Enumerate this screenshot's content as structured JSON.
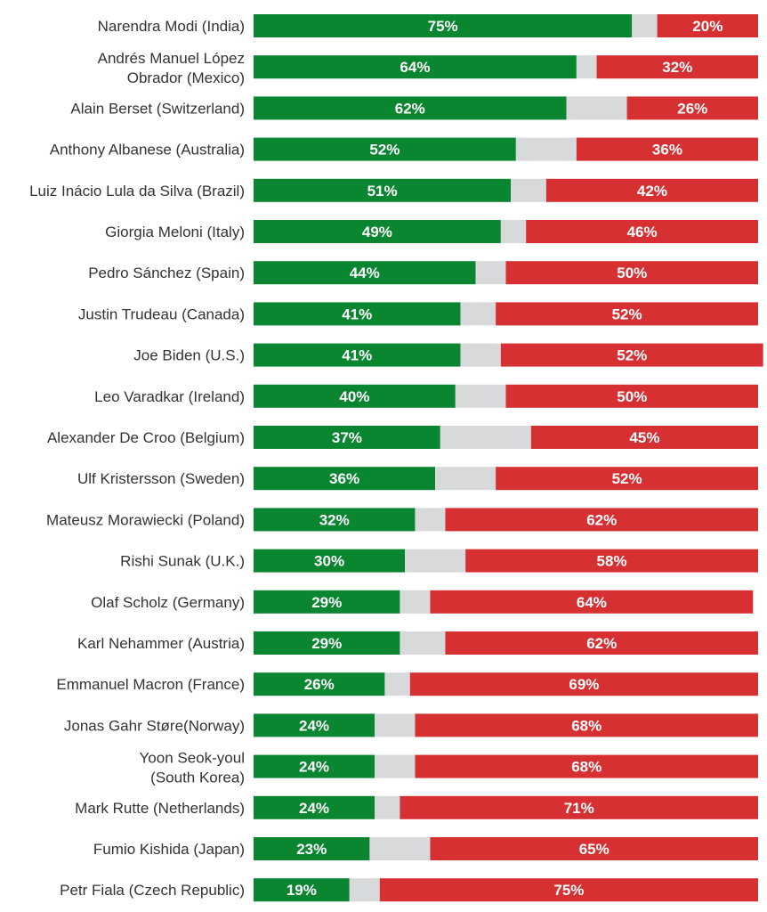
{
  "colors": {
    "approve": "#0a8530",
    "neutral": "#d8d9da",
    "disapprove": "#d63033",
    "text": "#333333"
  },
  "chart_data": {
    "type": "bar",
    "orientation": "horizontal",
    "stacked": true,
    "grid": false,
    "legend": "none",
    "xlim": [
      0,
      100
    ],
    "categories": [
      [
        "Narendra Modi (India)"
      ],
      [
        "Andrés Manuel López",
        "Obrador (Mexico)"
      ],
      [
        "Alain Berset (Switzerland)"
      ],
      [
        "Anthony Albanese (Australia)"
      ],
      [
        "Luiz Inácio Lula da Silva (Brazil)"
      ],
      [
        "Giorgia Meloni (Italy)"
      ],
      [
        "Pedro Sánchez (Spain)"
      ],
      [
        "Justin Trudeau (Canada)"
      ],
      [
        "Joe Biden (U.S.)"
      ],
      [
        "Leo Varadkar (Ireland)"
      ],
      [
        "Alexander De Croo (Belgium)"
      ],
      [
        "Ulf Kristersson (Sweden)"
      ],
      [
        "Mateusz Morawiecki (Poland)"
      ],
      [
        "Rishi Sunak (U.K.)"
      ],
      [
        "Olaf Scholz (Germany)"
      ],
      [
        "Karl Nehammer (Austria)"
      ],
      [
        "Emmanuel Macron (France)"
      ],
      [
        "Jonas Gahr Støre(Norway)"
      ],
      [
        "Yoon Seok-youl",
        "(South Korea)"
      ],
      [
        "Mark Rutte (Netherlands)"
      ],
      [
        "Fumio Kishida (Japan)"
      ],
      [
        "Petr Fiala (Czech Republic)"
      ]
    ],
    "series": [
      {
        "key": "approve",
        "values": [
          75,
          64,
          62,
          52,
          51,
          49,
          44,
          41,
          41,
          40,
          37,
          36,
          32,
          30,
          29,
          29,
          26,
          24,
          24,
          24,
          23,
          19
        ]
      },
      {
        "key": "neutral",
        "values": [
          5,
          4,
          12,
          12,
          7,
          5,
          6,
          7,
          8,
          10,
          18,
          12,
          6,
          12,
          6,
          9,
          5,
          8,
          8,
          5,
          12,
          6
        ]
      },
      {
        "key": "disapprove",
        "values": [
          20,
          32,
          26,
          36,
          42,
          46,
          50,
          52,
          52,
          50,
          45,
          52,
          62,
          58,
          64,
          62,
          69,
          68,
          68,
          71,
          65,
          75
        ]
      }
    ],
    "value_labels": [
      [
        "75%",
        "20%"
      ],
      [
        "64%",
        "32%"
      ],
      [
        "62%",
        "26%"
      ],
      [
        "52%",
        "36%"
      ],
      [
        "51%",
        "42%"
      ],
      [
        "49%",
        "46%"
      ],
      [
        "44%",
        "50%"
      ],
      [
        "41%",
        "52%"
      ],
      [
        "41%",
        "52%"
      ],
      [
        "40%",
        "50%"
      ],
      [
        "37%",
        "45%"
      ],
      [
        "36%",
        "52%"
      ],
      [
        "32%",
        "62%"
      ],
      [
        "30%",
        "58%"
      ],
      [
        "29%",
        "64%"
      ],
      [
        "29%",
        "62%"
      ],
      [
        "26%",
        "69%"
      ],
      [
        "24%",
        "68%"
      ],
      [
        "24%",
        "68%"
      ],
      [
        "24%",
        "71%"
      ],
      [
        "23%",
        "65%"
      ],
      [
        "19%",
        "75%"
      ]
    ]
  }
}
